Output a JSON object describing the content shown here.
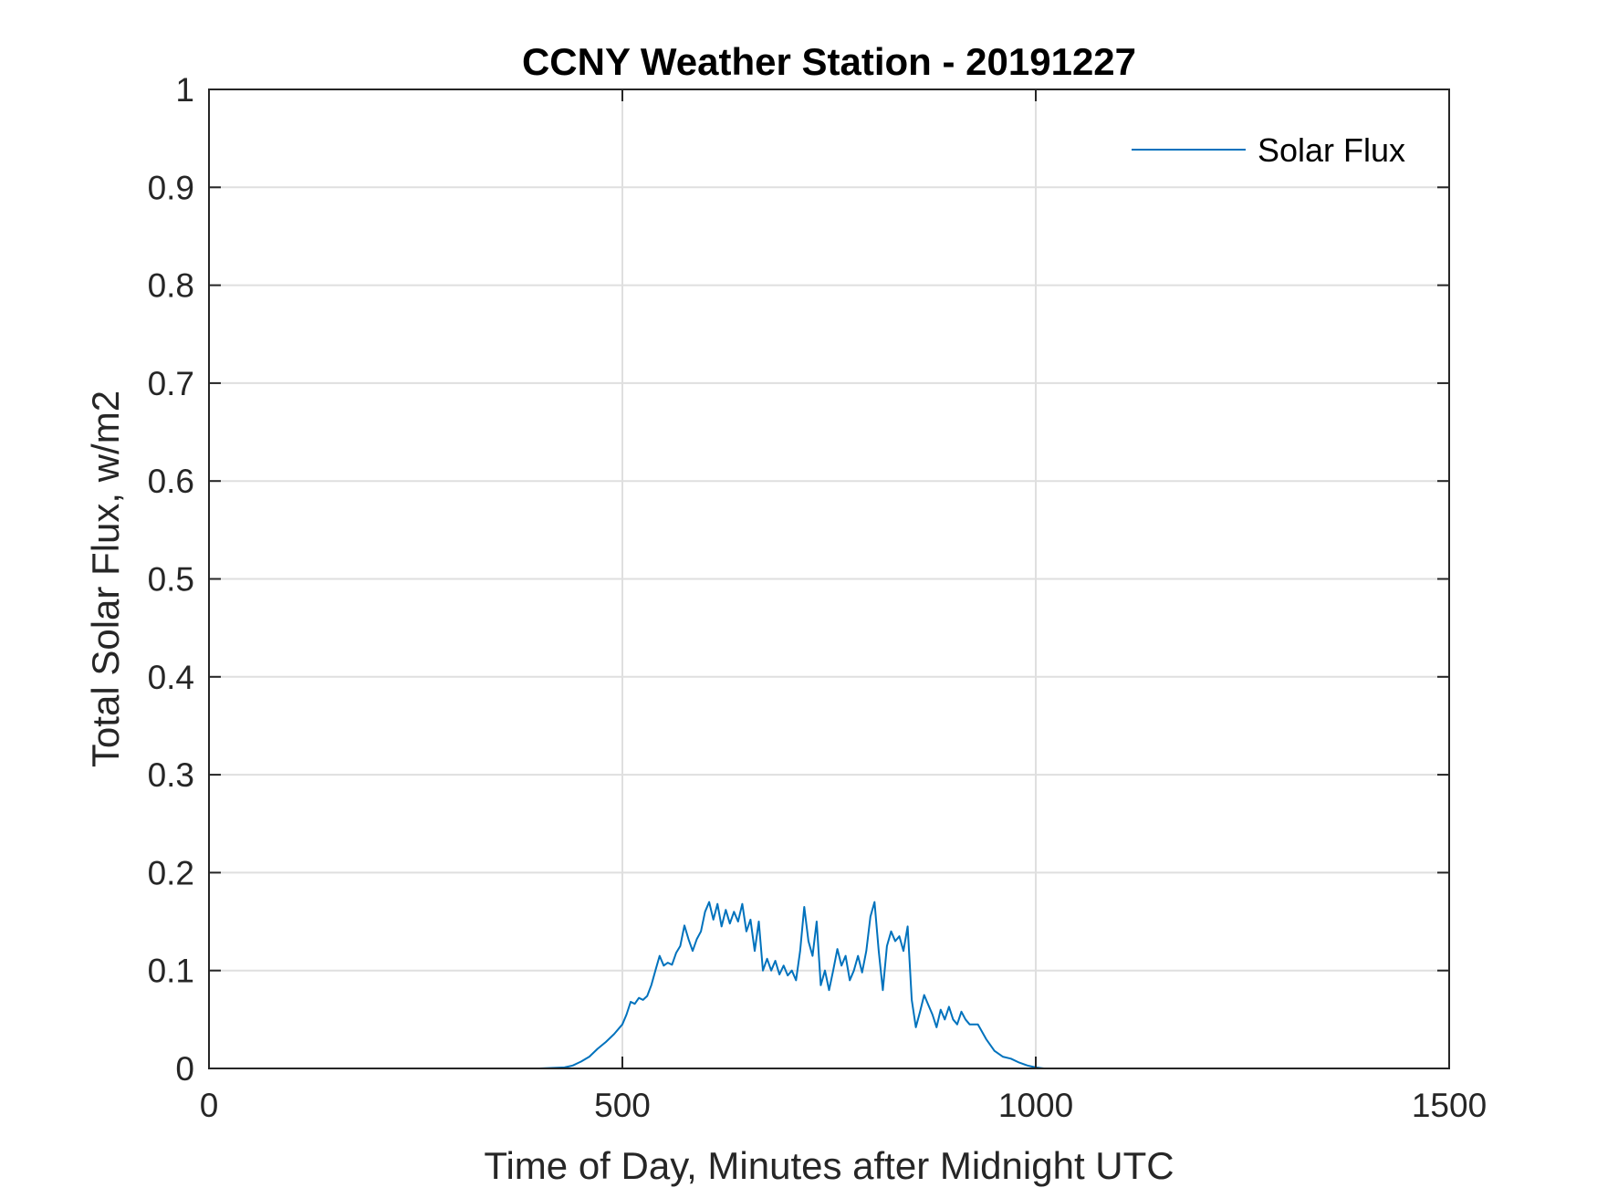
{
  "chart_data": {
    "type": "line",
    "title": "CCNY Weather Station - 20191227",
    "xlabel": "Time of Day, Minutes after Midnight UTC",
    "ylabel": "Total Solar Flux, w/m2",
    "xlim": [
      0,
      1500
    ],
    "ylim": [
      0,
      1
    ],
    "xticks": [
      0,
      500,
      1000,
      1500
    ],
    "xtick_labels": [
      "0",
      "500",
      "1000",
      "1500"
    ],
    "yticks": [
      0,
      0.1,
      0.2,
      0.3,
      0.4,
      0.5,
      0.6,
      0.7,
      0.8,
      0.9,
      1
    ],
    "ytick_labels": [
      "0",
      "0.1",
      "0.2",
      "0.3",
      "0.4",
      "0.5",
      "0.6",
      "0.7",
      "0.8",
      "0.9",
      "1"
    ],
    "grid": true,
    "legend_position": "top-right",
    "color": "#0072bd",
    "series": [
      {
        "name": "Solar Flux",
        "x": [
          0,
          100,
          200,
          300,
          400,
          430,
          440,
          450,
          460,
          470,
          480,
          490,
          500,
          505,
          510,
          515,
          520,
          525,
          530,
          535,
          540,
          545,
          550,
          555,
          560,
          565,
          570,
          575,
          580,
          585,
          590,
          595,
          600,
          605,
          610,
          615,
          620,
          625,
          630,
          635,
          640,
          645,
          650,
          655,
          660,
          665,
          670,
          675,
          680,
          685,
          690,
          695,
          700,
          705,
          710,
          715,
          720,
          725,
          730,
          735,
          740,
          745,
          750,
          755,
          760,
          765,
          770,
          775,
          780,
          785,
          790,
          795,
          800,
          805,
          810,
          815,
          820,
          825,
          830,
          835,
          840,
          845,
          850,
          855,
          860,
          865,
          870,
          875,
          880,
          885,
          890,
          895,
          900,
          905,
          910,
          915,
          920,
          930,
          940,
          950,
          960,
          970,
          980,
          990,
          1000,
          1010,
          1100,
          1200,
          1300,
          1440
        ],
        "y": [
          0,
          0,
          0,
          0,
          0,
          0.001,
          0.003,
          0.007,
          0.012,
          0.02,
          0.027,
          0.035,
          0.045,
          0.055,
          0.068,
          0.066,
          0.072,
          0.07,
          0.074,
          0.085,
          0.1,
          0.115,
          0.105,
          0.108,
          0.106,
          0.118,
          0.125,
          0.146,
          0.132,
          0.12,
          0.132,
          0.14,
          0.16,
          0.17,
          0.152,
          0.168,
          0.145,
          0.162,
          0.148,
          0.16,
          0.15,
          0.168,
          0.14,
          0.152,
          0.12,
          0.15,
          0.1,
          0.112,
          0.1,
          0.11,
          0.096,
          0.105,
          0.095,
          0.1,
          0.09,
          0.12,
          0.165,
          0.13,
          0.115,
          0.15,
          0.085,
          0.1,
          0.08,
          0.1,
          0.122,
          0.105,
          0.115,
          0.09,
          0.1,
          0.115,
          0.098,
          0.12,
          0.155,
          0.17,
          0.12,
          0.08,
          0.125,
          0.14,
          0.13,
          0.135,
          0.12,
          0.145,
          0.07,
          0.042,
          0.058,
          0.075,
          0.065,
          0.055,
          0.042,
          0.06,
          0.05,
          0.063,
          0.05,
          0.045,
          0.058,
          0.05,
          0.045,
          0.045,
          0.03,
          0.018,
          0.012,
          0.01,
          0.006,
          0.003,
          0.001,
          0,
          0,
          0,
          0,
          0
        ]
      }
    ]
  }
}
